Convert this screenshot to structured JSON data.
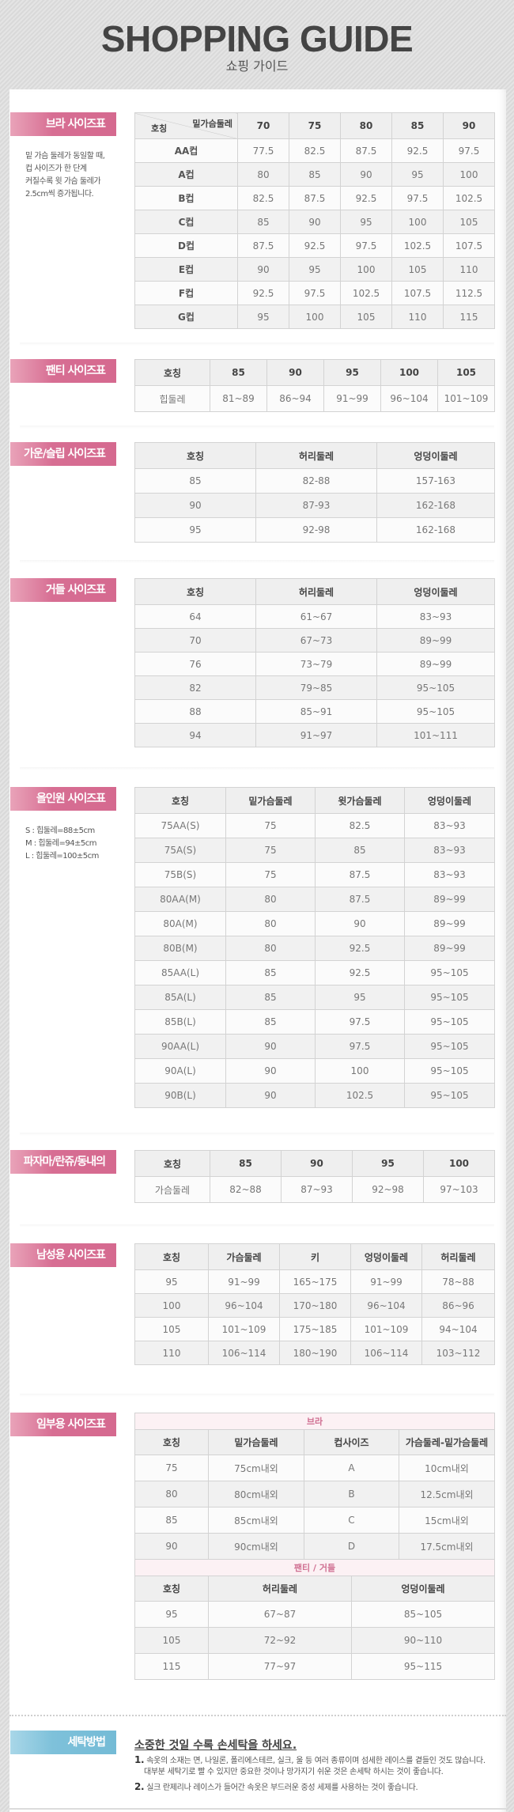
{
  "header": {
    "title": "SHOPPING GUIDE",
    "subtitle": "쇼핑 가이드"
  },
  "colors": {
    "label_pink": "#d76e93",
    "label_blue": "#7ec1da",
    "subheader_pink": "#d07092"
  },
  "sections": [
    {
      "id": "bra",
      "label": "브라 사이즈표",
      "note": [
        "밑 가슴 둘레가 동일할 때,",
        "컵 사이즈가 한 단계",
        "커질수록 윗 가슴 둘레가",
        "2.5cm씩 증가됩니다."
      ],
      "corner": {
        "top": "밑가슴둘레",
        "bottom": "호칭"
      },
      "headers": [
        "",
        "70",
        "75",
        "80",
        "85",
        "90"
      ],
      "rows": [
        [
          "AA컵",
          "77.5",
          "82.5",
          "87.5",
          "92.5",
          "97.5"
        ],
        [
          "A컵",
          "80",
          "85",
          "90",
          "95",
          "100"
        ],
        [
          "B컵",
          "82.5",
          "87.5",
          "92.5",
          "97.5",
          "102.5"
        ],
        [
          "C컵",
          "85",
          "90",
          "95",
          "100",
          "105"
        ],
        [
          "D컵",
          "87.5",
          "92.5",
          "97.5",
          "102.5",
          "107.5"
        ],
        [
          "E컵",
          "90",
          "95",
          "100",
          "105",
          "110"
        ],
        [
          "F컵",
          "92.5",
          "97.5",
          "102.5",
          "107.5",
          "112.5"
        ],
        [
          "G컵",
          "95",
          "100",
          "105",
          "110",
          "115"
        ]
      ]
    },
    {
      "id": "panty",
      "label": "팬티 사이즈표",
      "headers": [
        "호칭",
        "85",
        "90",
        "95",
        "100",
        "105"
      ],
      "rows": [
        [
          "힙둘레",
          "81~89",
          "86~94",
          "91~99",
          "96~104",
          "101~109"
        ]
      ]
    },
    {
      "id": "gown",
      "label": "가운/슬립 사이즈표",
      "headers": [
        "호칭",
        "허리둘레",
        "엉덩이둘레"
      ],
      "rows": [
        [
          "85",
          "82-88",
          "157-163"
        ],
        [
          "90",
          "87-93",
          "162-168"
        ],
        [
          "95",
          "92-98",
          "162-168"
        ]
      ]
    },
    {
      "id": "girdle",
      "label": "거들 사이즈표",
      "headers": [
        "호칭",
        "허리둘레",
        "엉덩이둘레"
      ],
      "rows": [
        [
          "64",
          "61~67",
          "83~93"
        ],
        [
          "70",
          "67~73",
          "89~99"
        ],
        [
          "76",
          "73~79",
          "89~99"
        ],
        [
          "82",
          "79~85",
          "95~105"
        ],
        [
          "88",
          "85~91",
          "95~105"
        ],
        [
          "94",
          "91~97",
          "101~111"
        ]
      ]
    },
    {
      "id": "allinone",
      "label": "올인원 사이즈표",
      "note": [
        "S : 힙둘레=88±5cm",
        "M : 힙둘레=94±5cm",
        "L : 힙둘레=100±5cm"
      ],
      "headers": [
        "호칭",
        "밑가슴둘레",
        "윗가슴둘레",
        "엉덩이둘레"
      ],
      "rows": [
        [
          "75AA(S)",
          "75",
          "82.5",
          "83~93"
        ],
        [
          "75A(S)",
          "75",
          "85",
          "83~93"
        ],
        [
          "75B(S)",
          "75",
          "87.5",
          "83~93"
        ],
        [
          "80AA(M)",
          "80",
          "87.5",
          "89~99"
        ],
        [
          "80A(M)",
          "80",
          "90",
          "89~99"
        ],
        [
          "80B(M)",
          "80",
          "92.5",
          "89~99"
        ],
        [
          "85AA(L)",
          "85",
          "92.5",
          "95~105"
        ],
        [
          "85A(L)",
          "85",
          "95",
          "95~105"
        ],
        [
          "85B(L)",
          "85",
          "97.5",
          "95~105"
        ],
        [
          "90AA(L)",
          "90",
          "97.5",
          "95~105"
        ],
        [
          "90A(L)",
          "90",
          "100",
          "95~105"
        ],
        [
          "90B(L)",
          "90",
          "102.5",
          "95~105"
        ]
      ]
    },
    {
      "id": "pajama",
      "label": "파자마/란쥬/동내의",
      "headers": [
        "호칭",
        "85",
        "90",
        "95",
        "100"
      ],
      "rows": [
        [
          "가슴둘레",
          "82~88",
          "87~93",
          "92~98",
          "97~103"
        ]
      ]
    },
    {
      "id": "men",
      "label": "남성용 사이즈표",
      "headers": [
        "호칭",
        "가슴둘레",
        "키",
        "엉덩이둘레",
        "허리둘레"
      ],
      "rows": [
        [
          "95",
          "91~99",
          "165~175",
          "91~99",
          "78~88"
        ],
        [
          "100",
          "96~104",
          "170~180",
          "96~104",
          "86~96"
        ],
        [
          "105",
          "101~109",
          "175~185",
          "101~109",
          "94~104"
        ],
        [
          "110",
          "106~114",
          "180~190",
          "106~114",
          "103~112"
        ]
      ]
    },
    {
      "id": "maternity",
      "label": "임부용 사이즈표",
      "blocks": [
        {
          "title": "브라",
          "headers": [
            "호칭",
            "밑가슴둘레",
            "컵사이즈",
            "가슴둘레-밑가슴둘레"
          ],
          "rows": [
            [
              "75",
              "75cm내외",
              "A",
              "10cm내외"
            ],
            [
              "80",
              "80cm내외",
              "B",
              "12.5cm내외"
            ],
            [
              "85",
              "85cm내외",
              "C",
              "15cm내외"
            ],
            [
              "90",
              "90cm내외",
              "D",
              "17.5cm내외"
            ]
          ]
        },
        {
          "title": "팬티 / 거들",
          "headers": [
            "호칭",
            "허리둘레",
            "엉덩이둘레"
          ],
          "rows": [
            [
              "95",
              "67~87",
              "85~105"
            ],
            [
              "105",
              "72~92",
              "90~110"
            ],
            [
              "115",
              "77~97",
              "95~115"
            ]
          ]
        }
      ]
    }
  ],
  "washing": {
    "label": "세탁방법",
    "title": "소중한 것일 수록 손세탁을 하세요.",
    "items": [
      {
        "num": "1.",
        "lines": [
          "속옷의 소재는 면, 나일론, 폴리에스테르, 실크, 울 등 여러 종류이며 섬세한 레이스를 곁들인 것도 많습니다.",
          "대부분 세탁기로 빨 수 있지만 중요한 것이나 망가지기 쉬운 것은 손세탁 하시는 것이 좋습니다."
        ]
      },
      {
        "num": "2.",
        "lines": [
          "실크 란제리나 레이스가 들어간 속옷은 부드러운 중성 세제를 사용하는 것이 좋습니다."
        ]
      }
    ]
  }
}
